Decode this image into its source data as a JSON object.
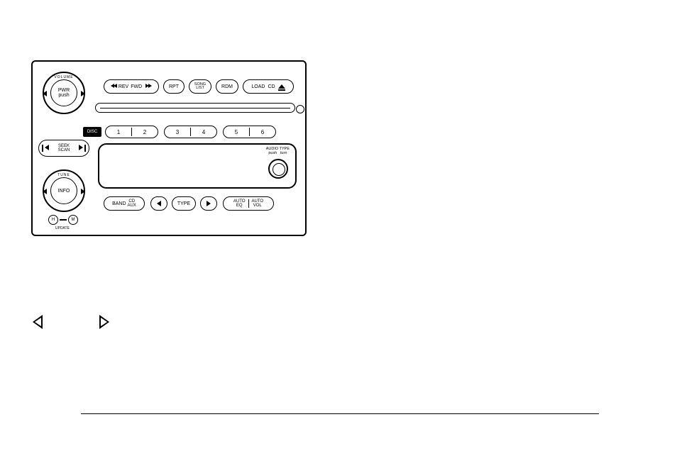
{
  "radio": {
    "volume": {
      "arc": "VOLUME",
      "line1": "PWR",
      "line2": "push"
    },
    "tune": {
      "arc": "TUNE",
      "label": "INFO"
    },
    "seek": {
      "line1": "SEEK",
      "line2": "SCAN"
    },
    "revfwd": {
      "rev": "REV",
      "fwd": "FWD"
    },
    "rpt": "RPT",
    "song": {
      "line1": "SONG",
      "line2": "LIST"
    },
    "rdm": "RDM",
    "load": "LOAD",
    "cd": "CD",
    "disc": "DISC",
    "presets": [
      "1",
      "2",
      "3",
      "4",
      "5",
      "6"
    ],
    "audio": {
      "l": "AUDIO",
      "r": "TYPE",
      "sl": "push",
      "sr": "turn"
    },
    "band": "BAND",
    "cdaux": {
      "line1": "CD",
      "line2": "AUX"
    },
    "type": "TYPE",
    "autoeq": {
      "line1": "AUTO",
      "line2": "EQ"
    },
    "autovol": {
      "line1": "AUTO",
      "line2": "VOL"
    },
    "h": "H",
    "m": "M",
    "update": "UPDATE"
  },
  "colors": {
    "line": "#000000",
    "bg": "#ffffff"
  }
}
